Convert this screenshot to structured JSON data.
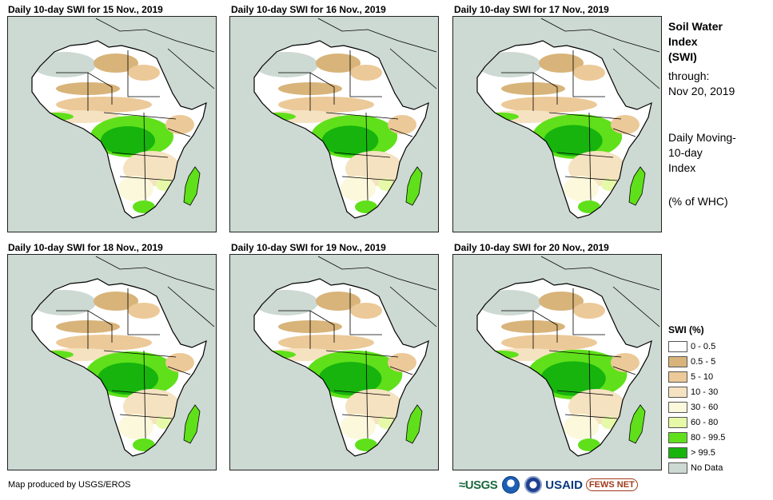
{
  "panels": [
    {
      "title": "Daily 10-day SWI for 15 Nov., 2019"
    },
    {
      "title": "Daily 10-day SWI for 16 Nov., 2019"
    },
    {
      "title": "Daily 10-day SWI for 17 Nov., 2019"
    },
    {
      "title": "Daily 10-day SWI for 18 Nov., 2019"
    },
    {
      "title": "Daily 10-day SWI for 19 Nov., 2019"
    },
    {
      "title": "Daily 10-day SWI for 20 Nov., 2019"
    }
  ],
  "side": {
    "title_line1": "Soil Water",
    "title_line2": "Index",
    "title_line3": "(SWI)",
    "through": "through:",
    "date": "Nov 20, 2019",
    "desc_line1": "Daily Moving-",
    "desc_line2": "10-day",
    "desc_line3": "Index",
    "unit": "(% of WHC)"
  },
  "legend": {
    "title": "SWI (%)",
    "items": [
      {
        "label": "0 - 0.5",
        "color": "#ffffff"
      },
      {
        "label": "0.5 - 5",
        "color": "#d8b47a"
      },
      {
        "label": "5 - 10",
        "color": "#ecc998"
      },
      {
        "label": "10 - 30",
        "color": "#f5e2c1"
      },
      {
        "label": "30 - 60",
        "color": "#fcf8dc"
      },
      {
        "label": "60 - 80",
        "color": "#e6f9a8"
      },
      {
        "label": "80 - 99.5",
        "color": "#5fe01a"
      },
      {
        "label": "> 99.5",
        "color": "#16b40d"
      },
      {
        "label": "No Data",
        "color": "#cdd9d3"
      }
    ]
  },
  "credit": "Map produced by USGS/EROS",
  "logos": {
    "usgs": "≈USGS",
    "usaid": "USAID",
    "fews": "FEWS NET"
  }
}
